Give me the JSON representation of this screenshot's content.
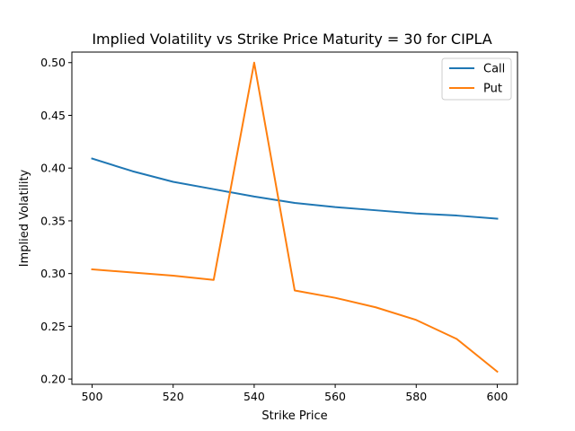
{
  "chart_data": {
    "type": "line",
    "title": "Implied Volatility vs Strike Price Maturity = 30 for CIPLA",
    "xlabel": "Strike Price",
    "ylabel": "Implied Volatility",
    "xlim": [
      495,
      605
    ],
    "ylim": [
      0.195,
      0.51
    ],
    "xticks": [
      500,
      520,
      540,
      560,
      580,
      600
    ],
    "yticks": [
      0.2,
      0.25,
      0.3,
      0.35,
      0.4,
      0.45,
      0.5
    ],
    "ytick_labels": [
      "0.20",
      "0.25",
      "0.30",
      "0.35",
      "0.40",
      "0.45",
      "0.50"
    ],
    "legend_position": "top-right",
    "grid": false,
    "x": [
      500,
      510,
      520,
      530,
      540,
      550,
      560,
      570,
      580,
      590,
      600
    ],
    "series": [
      {
        "name": "Call",
        "color": "#1f77b4",
        "values": [
          0.409,
          0.397,
          0.387,
          0.38,
          0.373,
          0.367,
          0.363,
          0.36,
          0.357,
          0.355,
          0.352
        ]
      },
      {
        "name": "Put",
        "color": "#ff7f0e",
        "values": [
          0.304,
          0.301,
          0.298,
          0.294,
          0.5,
          0.284,
          0.277,
          0.268,
          0.256,
          0.238,
          0.207
        ]
      }
    ]
  }
}
